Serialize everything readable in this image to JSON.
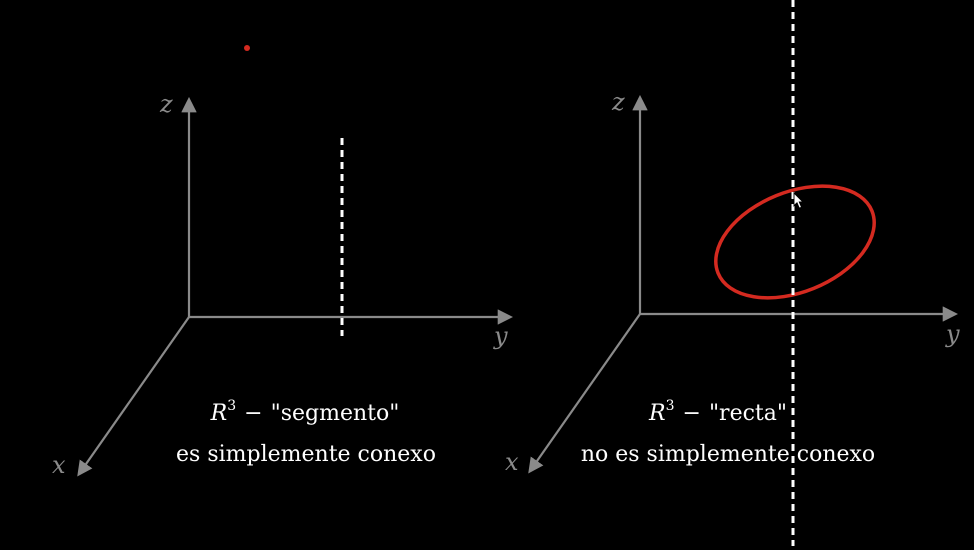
{
  "left_panel": {
    "axis_labels": {
      "z": "z",
      "y": "y",
      "x": "x"
    },
    "caption": {
      "symbol": "R",
      "exponent": "3",
      "dash": "−",
      "name": "\"segmento\"",
      "line2": "es simplemente conexo"
    }
  },
  "right_panel": {
    "axis_labels": {
      "z": "z",
      "y": "y",
      "x": "x"
    },
    "caption": {
      "symbol": "R",
      "exponent": "3",
      "dash": "−",
      "name": "\"recta\"",
      "line2": "no es simplemente conexo"
    }
  },
  "colors": {
    "background": "#000000",
    "axes": "#8a8a8a",
    "dashed": "#ffffff",
    "loop": "#d42a20",
    "point": "#d42a20",
    "text": "#ffffff"
  },
  "icons": {
    "cursor": "pointer-cursor-icon"
  }
}
